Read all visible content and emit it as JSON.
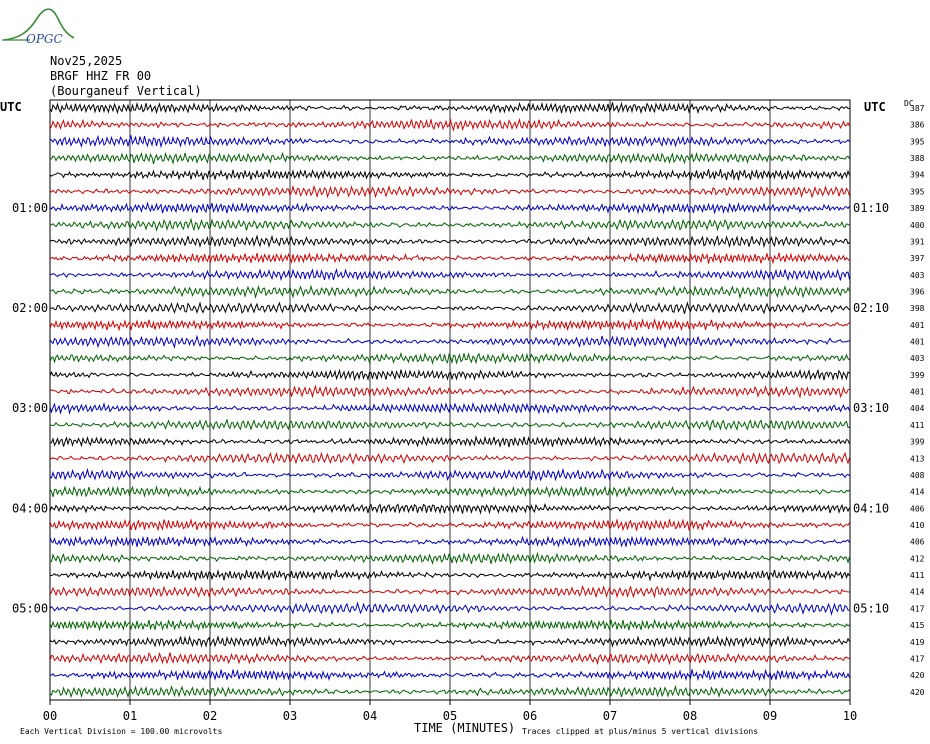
{
  "logo_text": "OPGC",
  "header": {
    "date": "Nov25,2025",
    "station": "BRGF HHZ FR 00",
    "description": "(Bourganeuf Vertical)"
  },
  "axes": {
    "left_label": "UTC",
    "right_label": "UTC",
    "dc_label": "DC",
    "xlabel": "TIME (MINUTES)",
    "footer_left": "Each Vertical Division =  100.00 microvolts",
    "footer_right": "Traces clipped at plus/minus 5 vertical divisions"
  },
  "colors": {
    "trace_cycle": [
      "#000000",
      "#d40000",
      "#0000c8",
      "#006400"
    ],
    "grid": "#000000"
  },
  "chart_data": {
    "type": "line",
    "title": "",
    "xlabel": "TIME (MINUTES)",
    "ylabel": "UTC",
    "x_ticks": [
      "00",
      "01",
      "02",
      "03",
      "04",
      "05",
      "06",
      "07",
      "08",
      "09",
      "10"
    ],
    "xlim": [
      0,
      10
    ],
    "left_time_labels": [
      {
        "row": 6,
        "label": "01:00"
      },
      {
        "row": 12,
        "label": "02:00"
      },
      {
        "row": 18,
        "label": "03:00"
      },
      {
        "row": 24,
        "label": "04:00"
      },
      {
        "row": 30,
        "label": "05:00"
      }
    ],
    "right_time_labels": [
      {
        "row": 6,
        "label": "01:10"
      },
      {
        "row": 12,
        "label": "02:10"
      },
      {
        "row": 18,
        "label": "03:10"
      },
      {
        "row": 24,
        "label": "04:10"
      },
      {
        "row": 30,
        "label": "05:10"
      }
    ],
    "dc_offsets": [
      387,
      386,
      395,
      388,
      394,
      395,
      389,
      400,
      391,
      397,
      403,
      396,
      398,
      401,
      401,
      403,
      399,
      401,
      404,
      411,
      399,
      413,
      408,
      414,
      406,
      410,
      406,
      412,
      411,
      414,
      417,
      415,
      419,
      417,
      420,
      420
    ],
    "trace_count": 36,
    "grid": true
  }
}
